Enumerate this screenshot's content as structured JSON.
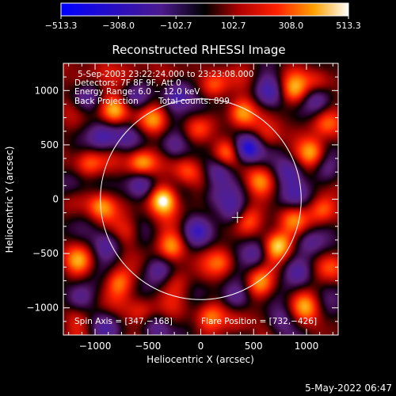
{
  "chart_data": {
    "type": "heatmap",
    "title": "Reconstructed RHESSI Image",
    "xlabel": "Heliocentric X (arcsec)",
    "ylabel": "Heliocentric Y (arcsec)",
    "xlim": [
      -1300,
      1300
    ],
    "ylim": [
      -1250,
      1250
    ],
    "x_ticks": [
      -1000,
      -500,
      0,
      500,
      1000
    ],
    "y_ticks": [
      -1000,
      -500,
      0,
      500,
      1000
    ],
    "x_tick_labels": [
      "−1000",
      "−500",
      "0",
      "500",
      "1000"
    ],
    "y_tick_labels": [
      "−1000",
      "−500",
      "0",
      "500",
      "1000"
    ],
    "colorbar": {
      "range": [
        -513.3,
        513.3
      ],
      "tick_labels": [
        "−513.3",
        "−308.0",
        "−102.7",
        "102.7",
        "308.0",
        "513.3"
      ],
      "colors": [
        "#0000ff",
        "#000000",
        "#ff0000",
        "#ffa000",
        "#ffffff"
      ]
    },
    "annotations": {
      "time_range": "5-Sep-2003 23:22:24.000 to 23:23:08.000",
      "detectors": "Detectors: 7F 8F 9F, Att 0",
      "energy_range": "Energy Range: 6.0 − 12.0 keV",
      "method": "Back Projection",
      "total_counts": "Total counts: 899.",
      "spin_axis": "Spin Axis = [347,−168]",
      "flare_position": "Flare Position = [732,−426]"
    },
    "solar_limb_radius_arcsec": 950,
    "sun_center": [
      0,
      0
    ],
    "spin_axis_marker": [
      347,
      -168
    ],
    "blobs": [
      {
        "x": -350,
        "y": 0,
        "v": 513
      },
      {
        "x": 730,
        "y": -430,
        "v": 513
      },
      {
        "x": -560,
        "y": 340,
        "v": 420
      },
      {
        "x": -820,
        "y": 820,
        "v": 400
      },
      {
        "x": 380,
        "y": 800,
        "v": 380
      },
      {
        "x": 1060,
        "y": 430,
        "v": 380
      },
      {
        "x": 240,
        "y": 430,
        "v": 340
      },
      {
        "x": -940,
        "y": -60,
        "v": 340
      },
      {
        "x": -270,
        "y": -440,
        "v": 320
      },
      {
        "x": 560,
        "y": -790,
        "v": 320
      },
      {
        "x": -780,
        "y": -760,
        "v": 300
      },
      {
        "x": 1160,
        "y": -100,
        "v": 300
      },
      {
        "x": 120,
        "y": 1050,
        "v": 290
      },
      {
        "x": -1060,
        "y": 330,
        "v": 280
      },
      {
        "x": 880,
        "y": 1000,
        "v": 280
      },
      {
        "x": 80,
        "y": -1080,
        "v": 270
      },
      {
        "x": 990,
        "y": -980,
        "v": 270
      },
      {
        "x": -440,
        "y": 730,
        "v": 260
      },
      {
        "x": -130,
        "y": 250,
        "v": 240
      },
      {
        "x": 560,
        "y": 160,
        "v": 240
      },
      {
        "x": -1150,
        "y": -560,
        "v": 240
      },
      {
        "x": 210,
        "y": -580,
        "v": 230
      },
      {
        "x": -560,
        "y": -1030,
        "v": 230
      },
      {
        "x": 860,
        "y": -180,
        "v": 220
      },
      {
        "x": -1140,
        "y": 1090,
        "v": 210
      },
      {
        "x": 1120,
        "y": 1080,
        "v": 210
      },
      {
        "x": 450,
        "y": -200,
        "v": 210
      },
      {
        "x": -680,
        "y": -300,
        "v": 200
      },
      {
        "x": 640,
        "y": 560,
        "v": 200
      },
      {
        "x": -40,
        "y": 620,
        "v": 190
      },
      {
        "x": 1180,
        "y": 700,
        "v": 190
      },
      {
        "x": -220,
        "y": -760,
        "v": 180
      },
      {
        "x": 340,
        "y": -1170,
        "v": 170
      },
      {
        "x": -1180,
        "y": -1100,
        "v": 170
      },
      {
        "x": 1220,
        "y": -620,
        "v": 160
      },
      {
        "x": -660,
        "y": 1120,
        "v": 160
      },
      {
        "x": 440,
        "y": 470,
        "v": -513
      },
      {
        "x": -560,
        "y": 130,
        "v": -320
      },
      {
        "x": 160,
        "y": 260,
        "v": -300
      },
      {
        "x": 840,
        "y": 260,
        "v": -320
      },
      {
        "x": -920,
        "y": 560,
        "v": -300
      },
      {
        "x": -30,
        "y": -290,
        "v": -280
      },
      {
        "x": 520,
        "y": -520,
        "v": -300
      },
      {
        "x": -880,
        "y": -430,
        "v": -280
      },
      {
        "x": -220,
        "y": 970,
        "v": -260
      },
      {
        "x": 650,
        "y": 990,
        "v": -260
      },
      {
        "x": -400,
        "y": -640,
        "v": -260
      },
      {
        "x": 330,
        "y": -910,
        "v": -250
      },
      {
        "x": 930,
        "y": -680,
        "v": -250
      },
      {
        "x": -1080,
        "y": 930,
        "v": -240
      },
      {
        "x": 300,
        "y": -120,
        "v": -260
      },
      {
        "x": -260,
        "y": 480,
        "v": -240
      },
      {
        "x": 1020,
        "y": -380,
        "v": -230
      },
      {
        "x": -600,
        "y": 930,
        "v": -220
      },
      {
        "x": 1100,
        "y": 920,
        "v": -220
      },
      {
        "x": -1140,
        "y": -900,
        "v": -220
      },
      {
        "x": 0,
        "y": 830,
        "v": -200
      },
      {
        "x": -720,
        "y": 580,
        "v": -200
      },
      {
        "x": 900,
        "y": 40,
        "v": -200
      },
      {
        "x": -900,
        "y": -1160,
        "v": -190
      },
      {
        "x": 760,
        "y": -1100,
        "v": -190
      },
      {
        "x": -420,
        "y": -1180,
        "v": -180
      },
      {
        "x": 1200,
        "y": 250,
        "v": -180
      },
      {
        "x": 120,
        "y": 20,
        "v": -170
      },
      {
        "x": -1220,
        "y": 140,
        "v": -170
      }
    ]
  },
  "footer": {
    "timestamp": "5-May-2022 06:47"
  }
}
